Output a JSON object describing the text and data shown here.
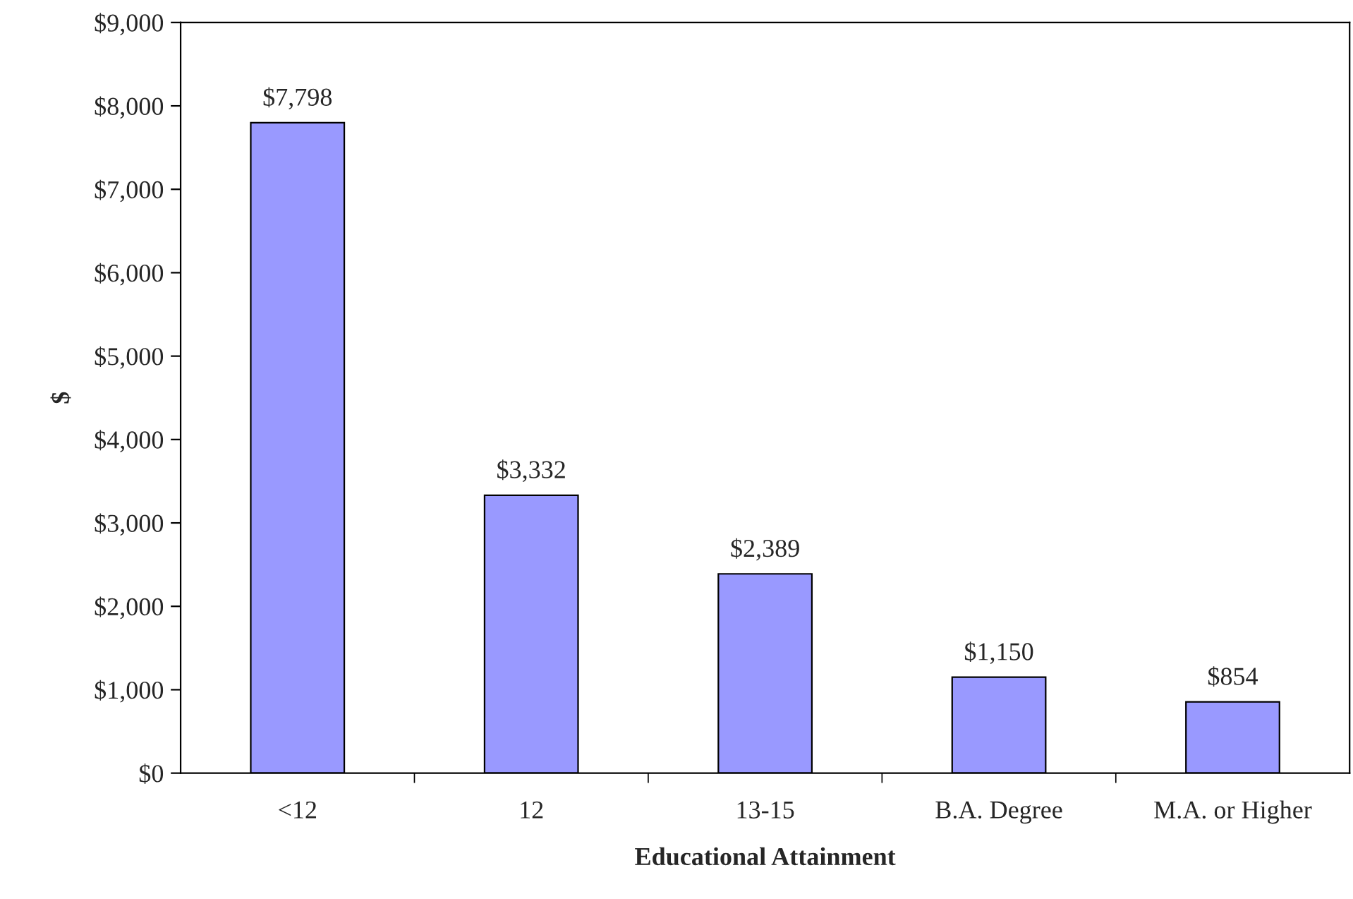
{
  "chart_data": {
    "type": "bar",
    "xlabel": "Educational Attainment",
    "ylabel": "$",
    "categories": [
      "<12",
      "12",
      "13-15",
      "B.A. Degree",
      "M.A. or Higher"
    ],
    "values": [
      7798,
      3332,
      2389,
      1150,
      854
    ],
    "color": "#9999ff",
    "value_labels": [
      "$7,798",
      "$3,332",
      "$2,389",
      "$1,150",
      "$854"
    ],
    "ylim": [
      0,
      9000
    ],
    "yticks": [
      {
        "value": 0,
        "label": "$0"
      },
      {
        "value": 1000,
        "label": "$1,000"
      },
      {
        "value": 2000,
        "label": "$2,000"
      },
      {
        "value": 3000,
        "label": "$3,000"
      },
      {
        "value": 4000,
        "label": "$4,000"
      },
      {
        "value": 5000,
        "label": "$5,000"
      },
      {
        "value": 6000,
        "label": "$6,000"
      },
      {
        "value": 7000,
        "label": "$7,000"
      },
      {
        "value": 8000,
        "label": "$8,000"
      },
      {
        "value": 9000,
        "label": "$9,000"
      }
    ],
    "grid": false,
    "legend": false
  }
}
